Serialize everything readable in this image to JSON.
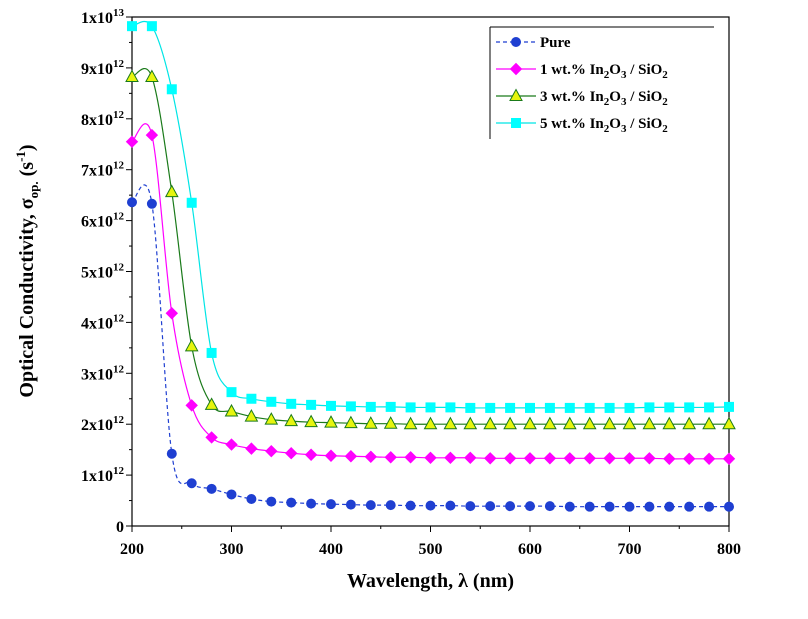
{
  "chart_data": {
    "type": "line",
    "xlabel_parts": [
      "Wavelength, ",
      "λ",
      " (nm)"
    ],
    "ylabel_parts": {
      "main": "Optical Conductivity,  ",
      "sym": "σ",
      "sub": "op.",
      "unit_pre": " (s",
      "unit_sup": "-1",
      "unit_post": ")"
    },
    "xlim": [
      200,
      800
    ],
    "ylim": [
      0,
      10000000000000
    ],
    "xticks": [
      {
        "v": 200,
        "label": "200"
      },
      {
        "v": 300,
        "label": "300"
      },
      {
        "v": 400,
        "label": "400"
      },
      {
        "v": 500,
        "label": "500"
      },
      {
        "v": 600,
        "label": "600"
      },
      {
        "v": 700,
        "label": "700"
      },
      {
        "v": 800,
        "label": "800"
      }
    ],
    "yticks": [
      {
        "v": 0,
        "base": "0",
        "exp": ""
      },
      {
        "v": 1000000000000,
        "base": "1x10",
        "exp": "12"
      },
      {
        "v": 2000000000000,
        "base": "2x10",
        "exp": "12"
      },
      {
        "v": 3000000000000,
        "base": "3x10",
        "exp": "12"
      },
      {
        "v": 4000000000000,
        "base": "4x10",
        "exp": "12"
      },
      {
        "v": 5000000000000,
        "base": "5x10",
        "exp": "12"
      },
      {
        "v": 6000000000000,
        "base": "6x10",
        "exp": "12"
      },
      {
        "v": 7000000000000,
        "base": "7x10",
        "exp": "12"
      },
      {
        "v": 8000000000000,
        "base": "8x10",
        "exp": "12"
      },
      {
        "v": 9000000000000,
        "base": "9x10",
        "exp": "12"
      },
      {
        "v": 10000000000000,
        "base": "1x10",
        "exp": "13"
      }
    ],
    "x": [
      200,
      220,
      240,
      260,
      280,
      300,
      320,
      340,
      360,
      380,
      400,
      420,
      440,
      460,
      480,
      500,
      520,
      540,
      560,
      580,
      600,
      620,
      640,
      660,
      680,
      700,
      720,
      740,
      760,
      780,
      800
    ],
    "series": [
      {
        "name": "Pure",
        "legend_parts": [
          {
            "t": "Pure"
          }
        ],
        "color": "#1f3fd1",
        "fill": "#1f3fd1",
        "marker": "circle",
        "dash": "4,3",
        "values": [
          6360000000000.0,
          6330000000000.0,
          1420000000000.0,
          840000000000.0,
          730000000000.0,
          620000000000.0,
          530000000000.0,
          480000000000.0,
          460000000000.0,
          440000000000.0,
          430000000000.0,
          420000000000.0,
          410000000000.0,
          410000000000.0,
          400000000000.0,
          400000000000.0,
          400000000000.0,
          390000000000.0,
          390000000000.0,
          390000000000.0,
          390000000000.0,
          390000000000.0,
          380000000000.0,
          380000000000.0,
          380000000000.0,
          380000000000.0,
          380000000000.0,
          380000000000.0,
          380000000000.0,
          380000000000.0,
          380000000000.0
        ]
      },
      {
        "name": "1 wt.% In2O3 / SiO2",
        "legend_parts": [
          {
            "t": "1 wt.% In"
          },
          {
            "t": "2",
            "sub": true
          },
          {
            "t": "O"
          },
          {
            "t": "3",
            "sub": true
          },
          {
            "t": " / SiO"
          },
          {
            "t": "2",
            "sub": true
          }
        ],
        "color": "#ff00ff",
        "fill": "#ff00ff",
        "marker": "diamond",
        "dash": "",
        "values": [
          7550000000000.0,
          7680000000000.0,
          4180000000000.0,
          2370000000000.0,
          1740000000000.0,
          1600000000000.0,
          1520000000000.0,
          1470000000000.0,
          1430000000000.0,
          1400000000000.0,
          1380000000000.0,
          1370000000000.0,
          1360000000000.0,
          1350000000000.0,
          1350000000000.0,
          1340000000000.0,
          1340000000000.0,
          1340000000000.0,
          1330000000000.0,
          1330000000000.0,
          1330000000000.0,
          1330000000000.0,
          1330000000000.0,
          1330000000000.0,
          1330000000000.0,
          1330000000000.0,
          1330000000000.0,
          1320000000000.0,
          1320000000000.0,
          1320000000000.0,
          1320000000000.0
        ]
      },
      {
        "name": "3 wt.% In2O3 / SiO2",
        "legend_parts": [
          {
            "t": "3 wt.% In"
          },
          {
            "t": "2",
            "sub": true
          },
          {
            "t": "O"
          },
          {
            "t": "3",
            "sub": true
          },
          {
            "t": " / SiO"
          },
          {
            "t": "2",
            "sub": true
          }
        ],
        "color": "#1a7a1a",
        "fill": "#e6f50e",
        "marker": "triangle",
        "dash": "",
        "values": [
          8820000000000.0,
          8820000000000.0,
          6560000000000.0,
          3530000000000.0,
          2380000000000.0,
          2250000000000.0,
          2150000000000.0,
          2090000000000.0,
          2060000000000.0,
          2040000000000.0,
          2030000000000.0,
          2020000000000.0,
          2010000000000.0,
          2010000000000.0,
          2000000000000.0,
          2000000000000.0,
          2000000000000.0,
          2000000000000.0,
          2000000000000.0,
          2000000000000.0,
          2000000000000.0,
          2000000000000.0,
          2000000000000.0,
          2000000000000.0,
          2000000000000.0,
          2000000000000.0,
          2000000000000.0,
          2000000000000.0,
          2000000000000.0,
          2000000000000.0,
          2000000000000.0
        ]
      },
      {
        "name": "5 wt.% In2O3 / SiO2",
        "legend_parts": [
          {
            "t": "5 wt.% In"
          },
          {
            "t": "2",
            "sub": true
          },
          {
            "t": "O"
          },
          {
            "t": "3",
            "sub": true
          },
          {
            "t": " / SiO"
          },
          {
            "t": "2",
            "sub": true
          }
        ],
        "color": "#00e5e5",
        "fill": "#00ffff",
        "marker": "square",
        "dash": "",
        "values": [
          9820000000000.0,
          9820000000000.0,
          8580000000000.0,
          6350000000000.0,
          3400000000000.0,
          2630000000000.0,
          2500000000000.0,
          2440000000000.0,
          2400000000000.0,
          2380000000000.0,
          2360000000000.0,
          2350000000000.0,
          2340000000000.0,
          2340000000000.0,
          2330000000000.0,
          2330000000000.0,
          2330000000000.0,
          2320000000000.0,
          2320000000000.0,
          2320000000000.0,
          2320000000000.0,
          2320000000000.0,
          2320000000000.0,
          2320000000000.0,
          2320000000000.0,
          2320000000000.0,
          2330000000000.0,
          2330000000000.0,
          2330000000000.0,
          2330000000000.0,
          2340000000000.0
        ]
      }
    ],
    "legend_placement": "top-right",
    "grid": false
  }
}
